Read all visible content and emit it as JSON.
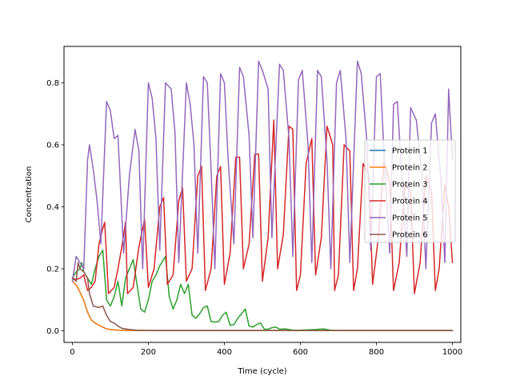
{
  "chart_data": {
    "type": "line",
    "title": "",
    "xlabel": "Time (cycle)",
    "ylabel": "Concentration",
    "xlim": [
      -22,
      1022
    ],
    "ylim": [
      -0.0375,
      0.9175
    ],
    "x_ticks": [
      0,
      200,
      400,
      600,
      800,
      1000
    ],
    "y_ticks": [
      0.0,
      0.2,
      0.4,
      0.6,
      0.8
    ],
    "x_tick_labels": [
      "0",
      "200",
      "400",
      "600",
      "800",
      "1000"
    ],
    "y_tick_labels": [
      "0.0",
      "0.2",
      "0.4",
      "0.6",
      "0.8"
    ],
    "grid": false,
    "legend_position": "center-right",
    "series": [
      {
        "name": "Protein 1",
        "color": "#1f77b4",
        "points": [
          [
            0,
            0.16
          ],
          [
            10,
            0.148
          ],
          [
            20,
            0.125
          ],
          [
            30,
            0.098
          ],
          [
            40,
            0.06
          ],
          [
            50,
            0.035
          ],
          [
            60,
            0.025
          ],
          [
            70,
            0.018
          ],
          [
            80,
            0.012
          ],
          [
            90,
            0.006
          ],
          [
            100,
            0.004
          ],
          [
            120,
            0.002
          ],
          [
            150,
            0.001
          ],
          [
            200,
            0.001
          ],
          [
            400,
            0.001
          ],
          [
            600,
            0.001
          ],
          [
            800,
            0.001
          ],
          [
            1000,
            0.001
          ]
        ]
      },
      {
        "name": "Protein 2",
        "color": "#ff7f0e",
        "points": [
          [
            0,
            0.16
          ],
          [
            10,
            0.148
          ],
          [
            20,
            0.125
          ],
          [
            30,
            0.098
          ],
          [
            40,
            0.06
          ],
          [
            50,
            0.035
          ],
          [
            60,
            0.025
          ],
          [
            70,
            0.018
          ],
          [
            80,
            0.012
          ],
          [
            90,
            0.006
          ],
          [
            100,
            0.004
          ],
          [
            120,
            0.002
          ],
          [
            150,
            0.001
          ],
          [
            200,
            0.001
          ],
          [
            400,
            0.001
          ],
          [
            600,
            0.001
          ],
          [
            800,
            0.001
          ],
          [
            1000,
            0.001
          ]
        ]
      },
      {
        "name": "Protein 3",
        "color": "#2ca02c",
        "points": [
          [
            0,
            0.17
          ],
          [
            10,
            0.19
          ],
          [
            20,
            0.2
          ],
          [
            25,
            0.22
          ],
          [
            30,
            0.19
          ],
          [
            40,
            0.17
          ],
          [
            50,
            0.15
          ],
          [
            60,
            0.2
          ],
          [
            70,
            0.24
          ],
          [
            80,
            0.26
          ],
          [
            90,
            0.1
          ],
          [
            100,
            0.08
          ],
          [
            110,
            0.11
          ],
          [
            120,
            0.16
          ],
          [
            130,
            0.08
          ],
          [
            140,
            0.17
          ],
          [
            150,
            0.2
          ],
          [
            160,
            0.23
          ],
          [
            170,
            0.15
          ],
          [
            180,
            0.07
          ],
          [
            190,
            0.06
          ],
          [
            200,
            0.1
          ],
          [
            210,
            0.16
          ],
          [
            220,
            0.18
          ],
          [
            230,
            0.21
          ],
          [
            245,
            0.24
          ],
          [
            255,
            0.11
          ],
          [
            265,
            0.07
          ],
          [
            275,
            0.1
          ],
          [
            285,
            0.15
          ],
          [
            295,
            0.12
          ],
          [
            305,
            0.15
          ],
          [
            315,
            0.05
          ],
          [
            325,
            0.04
          ],
          [
            335,
            0.055
          ],
          [
            345,
            0.075
          ],
          [
            355,
            0.08
          ],
          [
            365,
            0.03
          ],
          [
            375,
            0.028
          ],
          [
            385,
            0.03
          ],
          [
            395,
            0.05
          ],
          [
            405,
            0.06
          ],
          [
            415,
            0.018
          ],
          [
            425,
            0.02
          ],
          [
            435,
            0.04
          ],
          [
            445,
            0.055
          ],
          [
            455,
            0.07
          ],
          [
            465,
            0.015
          ],
          [
            475,
            0.012
          ],
          [
            485,
            0.02
          ],
          [
            495,
            0.025
          ],
          [
            505,
            0.005
          ],
          [
            515,
            0.005
          ],
          [
            525,
            0.01
          ],
          [
            535,
            0.012
          ],
          [
            545,
            0.005
          ],
          [
            560,
            0.006
          ],
          [
            570,
            0.004
          ],
          [
            580,
            0.002
          ],
          [
            600,
            0.002
          ],
          [
            640,
            0.004
          ],
          [
            660,
            0.006
          ],
          [
            680,
            0.002
          ],
          [
            700,
            0.001
          ],
          [
            800,
            0.001
          ],
          [
            900,
            0.001
          ],
          [
            1000,
            0.001
          ]
        ]
      },
      {
        "name": "Protein 4",
        "color": "#d62728",
        "points": [
          [
            0,
            0.17
          ],
          [
            10,
            0.165
          ],
          [
            20,
            0.17
          ],
          [
            30,
            0.18
          ],
          [
            40,
            0.13
          ],
          [
            50,
            0.14
          ],
          [
            60,
            0.16
          ],
          [
            70,
            0.28
          ],
          [
            80,
            0.33
          ],
          [
            85,
            0.35
          ],
          [
            95,
            0.12
          ],
          [
            110,
            0.14
          ],
          [
            120,
            0.2
          ],
          [
            130,
            0.27
          ],
          [
            140,
            0.35
          ],
          [
            145,
            0.12
          ],
          [
            160,
            0.14
          ],
          [
            175,
            0.27
          ],
          [
            190,
            0.36
          ],
          [
            200,
            0.14
          ],
          [
            215,
            0.2
          ],
          [
            230,
            0.4
          ],
          [
            240,
            0.43
          ],
          [
            250,
            0.15
          ],
          [
            265,
            0.18
          ],
          [
            280,
            0.42
          ],
          [
            290,
            0.46
          ],
          [
            300,
            0.16
          ],
          [
            315,
            0.2
          ],
          [
            330,
            0.5
          ],
          [
            340,
            0.53
          ],
          [
            350,
            0.13
          ],
          [
            365,
            0.2
          ],
          [
            380,
            0.5
          ],
          [
            390,
            0.53
          ],
          [
            400,
            0.15
          ],
          [
            415,
            0.25
          ],
          [
            430,
            0.56
          ],
          [
            440,
            0.56
          ],
          [
            450,
            0.2
          ],
          [
            465,
            0.28
          ],
          [
            480,
            0.57
          ],
          [
            490,
            0.57
          ],
          [
            500,
            0.16
          ],
          [
            515,
            0.3
          ],
          [
            530,
            0.68
          ],
          [
            540,
            0.2
          ],
          [
            555,
            0.31
          ],
          [
            570,
            0.66
          ],
          [
            580,
            0.65
          ],
          [
            590,
            0.13
          ],
          [
            600,
            0.18
          ],
          [
            615,
            0.54
          ],
          [
            630,
            0.62
          ],
          [
            640,
            0.18
          ],
          [
            655,
            0.3
          ],
          [
            670,
            0.66
          ],
          [
            685,
            0.6
          ],
          [
            690,
            0.13
          ],
          [
            700,
            0.18
          ],
          [
            715,
            0.6
          ],
          [
            730,
            0.58
          ],
          [
            740,
            0.13
          ],
          [
            750,
            0.2
          ],
          [
            765,
            0.54
          ],
          [
            780,
            0.5
          ],
          [
            790,
            0.15
          ],
          [
            805,
            0.3
          ],
          [
            820,
            0.55
          ],
          [
            835,
            0.48
          ],
          [
            845,
            0.13
          ],
          [
            860,
            0.22
          ],
          [
            875,
            0.47
          ],
          [
            890,
            0.45
          ],
          [
            900,
            0.12
          ],
          [
            915,
            0.22
          ],
          [
            930,
            0.5
          ],
          [
            945,
            0.45
          ],
          [
            955,
            0.13
          ],
          [
            965,
            0.2
          ],
          [
            980,
            0.47
          ],
          [
            990,
            0.4
          ],
          [
            1000,
            0.22
          ]
        ]
      },
      {
        "name": "Protein 5",
        "color": "#9467bd",
        "points": [
          [
            0,
            0.16
          ],
          [
            10,
            0.24
          ],
          [
            20,
            0.22
          ],
          [
            30,
            0.2
          ],
          [
            40,
            0.55
          ],
          [
            45,
            0.6
          ],
          [
            55,
            0.52
          ],
          [
            65,
            0.42
          ],
          [
            75,
            0.28
          ],
          [
            90,
            0.74
          ],
          [
            100,
            0.71
          ],
          [
            110,
            0.62
          ],
          [
            120,
            0.63
          ],
          [
            135,
            0.25
          ],
          [
            150,
            0.5
          ],
          [
            165,
            0.65
          ],
          [
            175,
            0.58
          ],
          [
            185,
            0.2
          ],
          [
            200,
            0.8
          ],
          [
            210,
            0.75
          ],
          [
            220,
            0.62
          ],
          [
            230,
            0.26
          ],
          [
            245,
            0.8
          ],
          [
            260,
            0.78
          ],
          [
            270,
            0.64
          ],
          [
            280,
            0.22
          ],
          [
            300,
            0.8
          ],
          [
            310,
            0.73
          ],
          [
            320,
            0.6
          ],
          [
            330,
            0.25
          ],
          [
            345,
            0.82
          ],
          [
            355,
            0.8
          ],
          [
            365,
            0.52
          ],
          [
            375,
            0.2
          ],
          [
            390,
            0.83
          ],
          [
            400,
            0.8
          ],
          [
            410,
            0.55
          ],
          [
            425,
            0.28
          ],
          [
            440,
            0.85
          ],
          [
            450,
            0.82
          ],
          [
            465,
            0.63
          ],
          [
            475,
            0.3
          ],
          [
            490,
            0.87
          ],
          [
            500,
            0.84
          ],
          [
            515,
            0.78
          ],
          [
            525,
            0.3
          ],
          [
            545,
            0.86
          ],
          [
            555,
            0.84
          ],
          [
            570,
            0.62
          ],
          [
            580,
            0.24
          ],
          [
            595,
            0.81
          ],
          [
            605,
            0.84
          ],
          [
            620,
            0.6
          ],
          [
            630,
            0.22
          ],
          [
            645,
            0.84
          ],
          [
            655,
            0.82
          ],
          [
            670,
            0.55
          ],
          [
            680,
            0.2
          ],
          [
            695,
            0.8
          ],
          [
            705,
            0.84
          ],
          [
            720,
            0.62
          ],
          [
            730,
            0.22
          ],
          [
            750,
            0.87
          ],
          [
            760,
            0.83
          ],
          [
            775,
            0.61
          ],
          [
            785,
            0.26
          ],
          [
            800,
            0.82
          ],
          [
            810,
            0.83
          ],
          [
            820,
            0.57
          ],
          [
            835,
            0.25
          ],
          [
            845,
            0.73
          ],
          [
            855,
            0.74
          ],
          [
            865,
            0.54
          ],
          [
            880,
            0.24
          ],
          [
            890,
            0.72
          ],
          [
            905,
            0.68
          ],
          [
            920,
            0.5
          ],
          [
            930,
            0.2
          ],
          [
            945,
            0.67
          ],
          [
            955,
            0.7
          ],
          [
            970,
            0.48
          ],
          [
            980,
            0.22
          ],
          [
            990,
            0.78
          ],
          [
            1000,
            0.55
          ]
        ]
      },
      {
        "name": "Protein 6",
        "color": "#8c564b",
        "points": [
          [
            0,
            0.17
          ],
          [
            10,
            0.16
          ],
          [
            15,
            0.22
          ],
          [
            20,
            0.2
          ],
          [
            30,
            0.19
          ],
          [
            40,
            0.17
          ],
          [
            45,
            0.12
          ],
          [
            55,
            0.08
          ],
          [
            70,
            0.075
          ],
          [
            80,
            0.08
          ],
          [
            90,
            0.05
          ],
          [
            100,
            0.03
          ],
          [
            110,
            0.025
          ],
          [
            120,
            0.015
          ],
          [
            130,
            0.008
          ],
          [
            150,
            0.004
          ],
          [
            170,
            0.002
          ],
          [
            200,
            0.001
          ],
          [
            400,
            0.001
          ],
          [
            600,
            0.001
          ],
          [
            800,
            0.001
          ],
          [
            1000,
            0.001
          ]
        ]
      }
    ]
  }
}
